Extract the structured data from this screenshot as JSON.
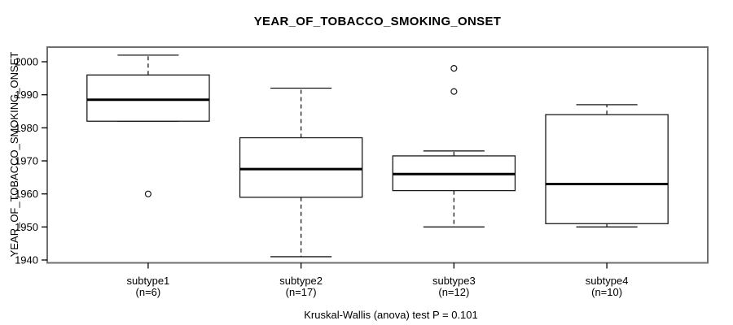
{
  "colors": {
    "plot_border": "#6e6e6e",
    "box_line": "#1a1a1a",
    "median_line": "#000000",
    "tick_line": "#000000",
    "background": "#ffffff"
  },
  "chart_data": {
    "type": "boxplot",
    "title": "YEAR_OF_TOBACCO_SMOKING_ONSET",
    "ylabel": "YEAR_OF_TOBACCO_SMOKING_ONSET",
    "xlabel": "",
    "caption": "Kruskal-Wallis (anova) test P = 0.101",
    "ylim": [
      1939,
      2004.5
    ],
    "yticks": [
      1940,
      1950,
      1960,
      1970,
      1980,
      1990,
      2000
    ],
    "grid": false,
    "legend": "none",
    "categories": [
      "subtype1",
      "subtype2",
      "subtype3",
      "subtype4"
    ],
    "category_sublabels": [
      "(n=6)",
      "(n=17)",
      "(n=12)",
      "(n=10)"
    ],
    "series": [
      {
        "name": "subtype1",
        "label": "subtype1",
        "sublabel": "(n=6)",
        "n": 6,
        "whisker_low": 1982,
        "q1": 1982,
        "median": 1988.5,
        "q3": 1996,
        "whisker_high": 2002,
        "outliers": [
          1960
        ]
      },
      {
        "name": "subtype2",
        "label": "subtype2",
        "sublabel": "(n=17)",
        "n": 17,
        "whisker_low": 1941,
        "q1": 1959,
        "median": 1967.5,
        "q3": 1977,
        "whisker_high": 1992,
        "outliers": []
      },
      {
        "name": "subtype3",
        "label": "subtype3",
        "sublabel": "(n=12)",
        "n": 12,
        "whisker_low": 1950,
        "q1": 1961,
        "median": 1966,
        "q3": 1971.5,
        "whisker_high": 1973,
        "outliers": [
          1998,
          1991
        ]
      },
      {
        "name": "subtype4",
        "label": "subtype4",
        "sublabel": "(n=10)",
        "n": 10,
        "whisker_low": 1950,
        "q1": 1951,
        "median": 1963,
        "q3": 1984,
        "whisker_high": 1987,
        "outliers": []
      }
    ]
  }
}
